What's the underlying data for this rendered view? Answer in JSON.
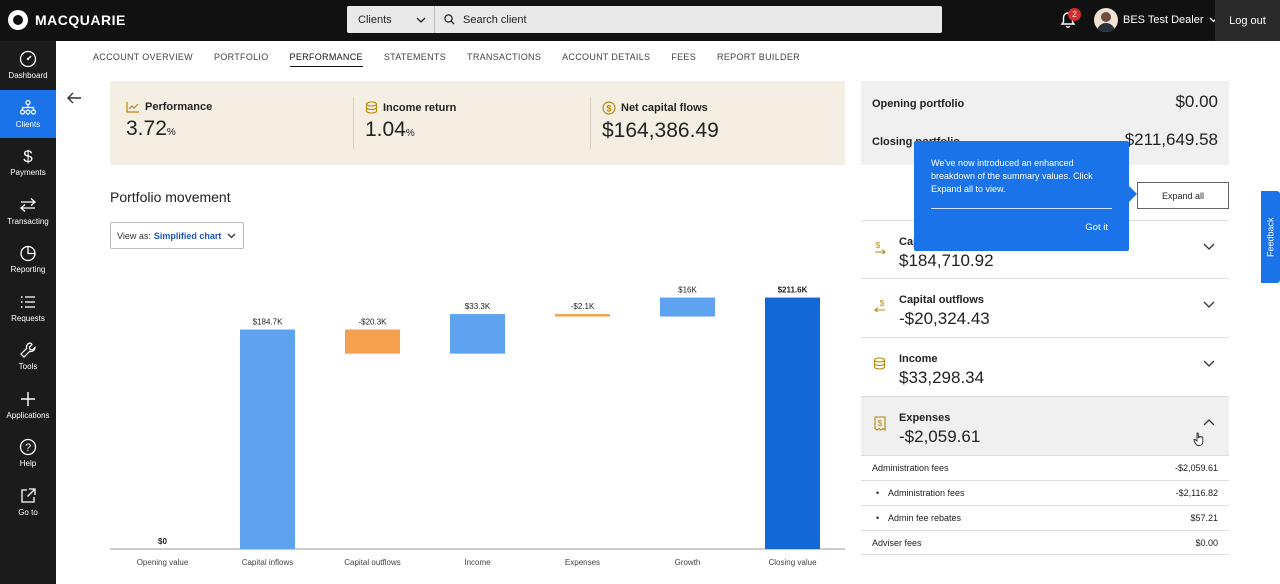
{
  "brand": {
    "name": "MACQUARIE"
  },
  "search": {
    "scope": "Clients",
    "placeholder": "Search client"
  },
  "notifications": {
    "count": "2"
  },
  "user": {
    "name": "BES Test Dealer"
  },
  "logout_label": "Log out",
  "sidebar": {
    "items": [
      {
        "label": "Dashboard",
        "icon": "dashboard-icon"
      },
      {
        "label": "Clients",
        "icon": "clients-icon",
        "active": true
      },
      {
        "label": "Payments",
        "icon": "dollar-icon"
      },
      {
        "label": "Transacting",
        "icon": "transfer-icon"
      },
      {
        "label": "Reporting",
        "icon": "pie-chart-icon"
      },
      {
        "label": "Requests",
        "icon": "list-icon"
      },
      {
        "label": "Tools",
        "icon": "wrench-icon"
      },
      {
        "label": "Applications",
        "icon": "plus-icon"
      },
      {
        "label": "Help",
        "icon": "help-icon"
      },
      {
        "label": "Go to",
        "icon": "external-link-icon"
      }
    ]
  },
  "tabs": [
    "ACCOUNT OVERVIEW",
    "PORTFOLIO",
    "PERFORMANCE",
    "STATEMENTS",
    "TRANSACTIONS",
    "ACCOUNT DETAILS",
    "FEES",
    "REPORT BUILDER"
  ],
  "active_tab": "PERFORMANCE",
  "summary": {
    "performance": {
      "label": "Performance",
      "value": "3.72",
      "unit": "%"
    },
    "income_return": {
      "label": "Income return",
      "value": "1.04",
      "unit": "%"
    },
    "net_capital_flows": {
      "label": "Net capital flows",
      "value": "$164,386.49"
    }
  },
  "movement": {
    "title": "Portfolio movement",
    "view_as_label": "View as:",
    "view_as_value": "Simplified chart"
  },
  "chart_data": {
    "type": "bar",
    "subtype": "waterfall",
    "categories": [
      "Opening value",
      "Capital inflows",
      "Capital outflows",
      "Income",
      "Expenses",
      "Growth",
      "Closing value"
    ],
    "values": [
      0,
      184.7,
      -20.3,
      33.3,
      -2.1,
      16,
      211.6
    ],
    "labels": [
      "$0",
      "$184.7K",
      "-$20.3K",
      "$33.3K",
      "-$2.1K",
      "$16K",
      "$211.6K"
    ],
    "unit": "$K",
    "colors": {
      "increase": "#5ea3f0",
      "decrease": "#f5a04f",
      "total": "#1467d6"
    }
  },
  "portfolio": {
    "opening_label": "Opening portfolio",
    "opening_value": "$0.00",
    "closing_label": "Closing portfolio",
    "closing_value": "$211,649.58"
  },
  "expand_all_label": "Expand all",
  "accordion": [
    {
      "title": "Capital inflows",
      "value": "$184,710.92"
    },
    {
      "title": "Capital outflows",
      "value": "-$20,324.43"
    },
    {
      "title": "Income",
      "value": "$33,298.34"
    },
    {
      "title": "Expenses",
      "value": "-$2,059.61"
    }
  ],
  "fees": [
    {
      "label": "Administration fees",
      "value": "-$2,059.61",
      "sub": false
    },
    {
      "label": "Administration fees",
      "value": "-$2,116.82",
      "sub": true
    },
    {
      "label": "Admin fee rebates",
      "value": "$57.21",
      "sub": true
    },
    {
      "label": "Adviser fees",
      "value": "$0.00",
      "sub": false
    }
  ],
  "tooltip": {
    "text": "We've now introduced an enhanced breakdown of the summary values. Click Expand all to view.",
    "button": "Got it"
  },
  "feedback_label": "Feedback"
}
